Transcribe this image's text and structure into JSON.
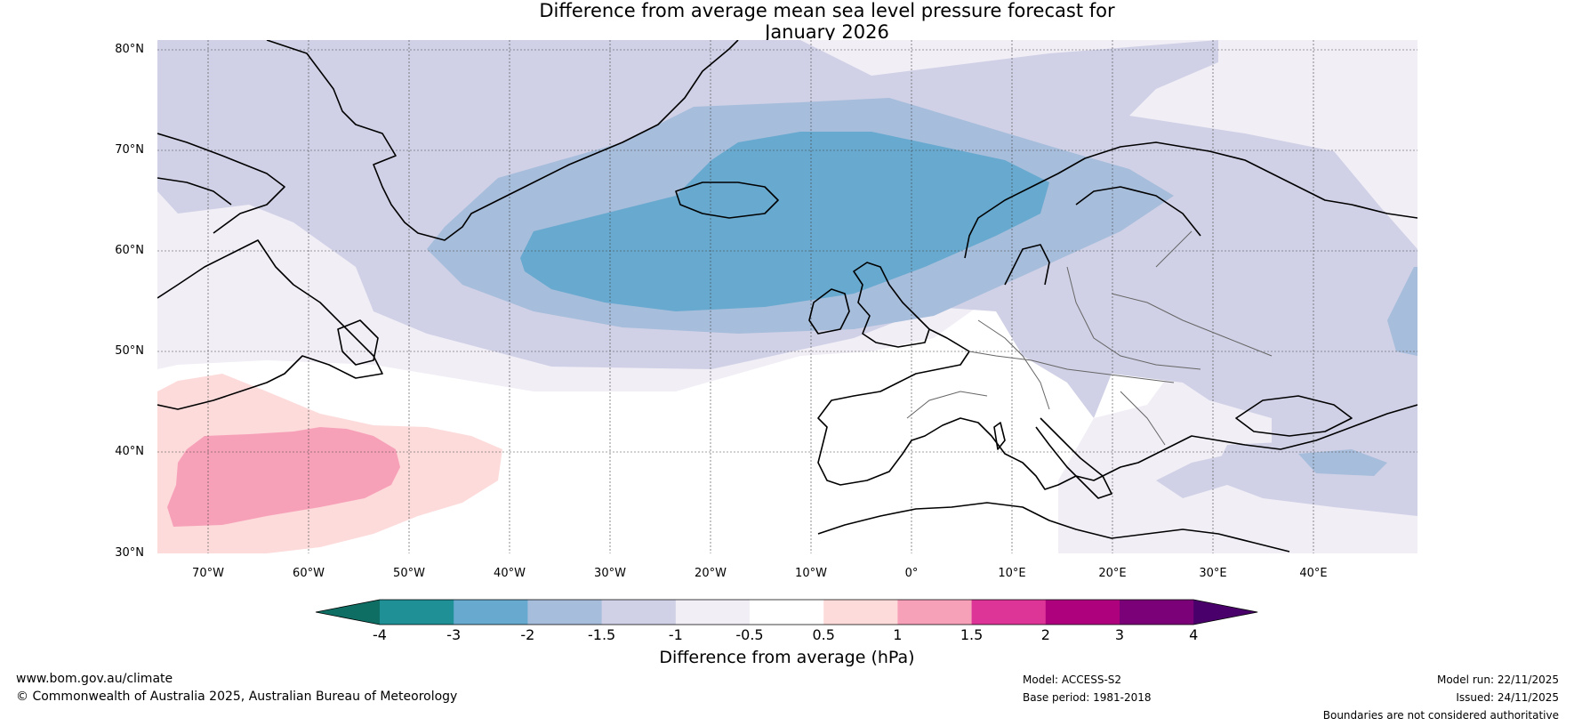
{
  "title": {
    "line1": "Difference from average mean sea level pressure forecast for",
    "line2": "January 2026"
  },
  "map": {
    "lat_labels": [
      "80°N",
      "70°N",
      "60°N",
      "50°N",
      "40°N",
      "30°N"
    ],
    "lon_labels": [
      "70°W",
      "60°W",
      "50°W",
      "40°W",
      "30°W",
      "20°W",
      "10°W",
      "0°",
      "10°E",
      "20°E",
      "30°E",
      "40°E"
    ]
  },
  "colorbar": {
    "ticks": [
      "-4",
      "-3",
      "-2",
      "-1.5",
      "-1",
      "-0.5",
      "0.5",
      "1",
      "1.5",
      "2",
      "3",
      "4"
    ],
    "colors": [
      "#0f6e63",
      "#1e9096",
      "#67a9cf",
      "#a6bddb",
      "#d0d1e6",
      "#f1eef6",
      "#ffffff",
      "#fddbdb",
      "#f7a1b9",
      "#dd3497",
      "#ae017e",
      "#7a0177",
      "#49006a"
    ],
    "label": "Difference from average (hPa)"
  },
  "footer": {
    "website": "www.bom.gov.au/climate",
    "copyright": "© Commonwealth of Australia 2025, Australian Bureau of Meteorology",
    "model": "Model: ACCESS-S2",
    "base_period": "Base period: 1981-2018",
    "model_run": "Model run: 22/11/2025",
    "issued": "Issued: 24/11/2025",
    "disclaimer": "Boundaries are not considered authoritative"
  }
}
